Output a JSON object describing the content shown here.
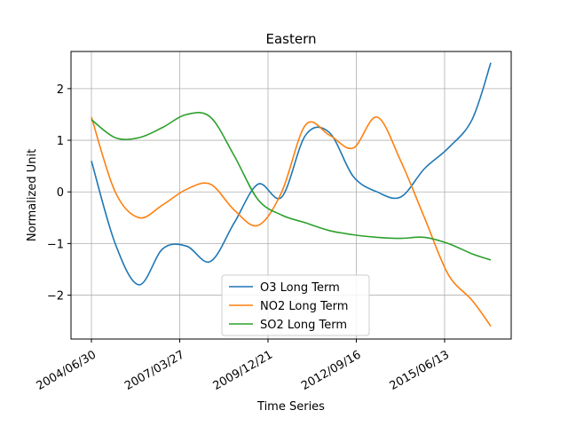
{
  "chart_data": {
    "type": "line",
    "title": "Eastern",
    "xlabel": "Time Series",
    "ylabel": "Normalized Unit",
    "x_tick_labels": [
      "2004/06/30",
      "2007/03/27",
      "2009/12/21",
      "2012/09/16",
      "2015/06/13"
    ],
    "y_tick_labels": [
      "−2",
      "−1",
      "0",
      "1",
      "2"
    ],
    "y_ticks": [
      -2,
      -1,
      0,
      1,
      2
    ],
    "ylim": [
      -2.85,
      2.72
    ],
    "grid": true,
    "legend_position": "lower-center",
    "x": [
      "2004/06/30",
      "2005/03/26",
      "2005/12/21",
      "2006/09/16",
      "2007/06/12",
      "2008/03/08",
      "2008/12/03",
      "2009/08/30",
      "2010/05/26",
      "2011/02/20",
      "2011/11/16",
      "2012/08/12",
      "2013/05/08",
      "2014/02/01",
      "2014/10/28",
      "2015/07/25",
      "2016/04/19",
      "2016/11/17"
    ],
    "series": [
      {
        "name": "O3 Long Term",
        "color": "#1f77b4",
        "values": [
          0.6,
          -1.0,
          -1.8,
          -1.1,
          -1.05,
          -1.35,
          -0.6,
          0.15,
          -0.1,
          1.1,
          1.15,
          0.3,
          0.0,
          -0.1,
          0.45,
          0.85,
          1.4,
          2.5
        ]
      },
      {
        "name": "NO2 Long Term",
        "color": "#ff7f0e",
        "values": [
          1.45,
          0.0,
          -0.5,
          -0.25,
          0.05,
          0.15,
          -0.35,
          -0.65,
          0.0,
          1.3,
          1.1,
          0.85,
          1.45,
          0.6,
          -0.5,
          -1.6,
          -2.1,
          -2.6
        ]
      },
      {
        "name": "SO2 Long Term",
        "color": "#2ca02c",
        "values": [
          1.4,
          1.05,
          1.05,
          1.25,
          1.5,
          1.45,
          0.7,
          -0.15,
          -0.45,
          -0.6,
          -0.75,
          -0.83,
          -0.88,
          -0.9,
          -0.88,
          -1.0,
          -1.2,
          -1.32
        ]
      }
    ]
  }
}
